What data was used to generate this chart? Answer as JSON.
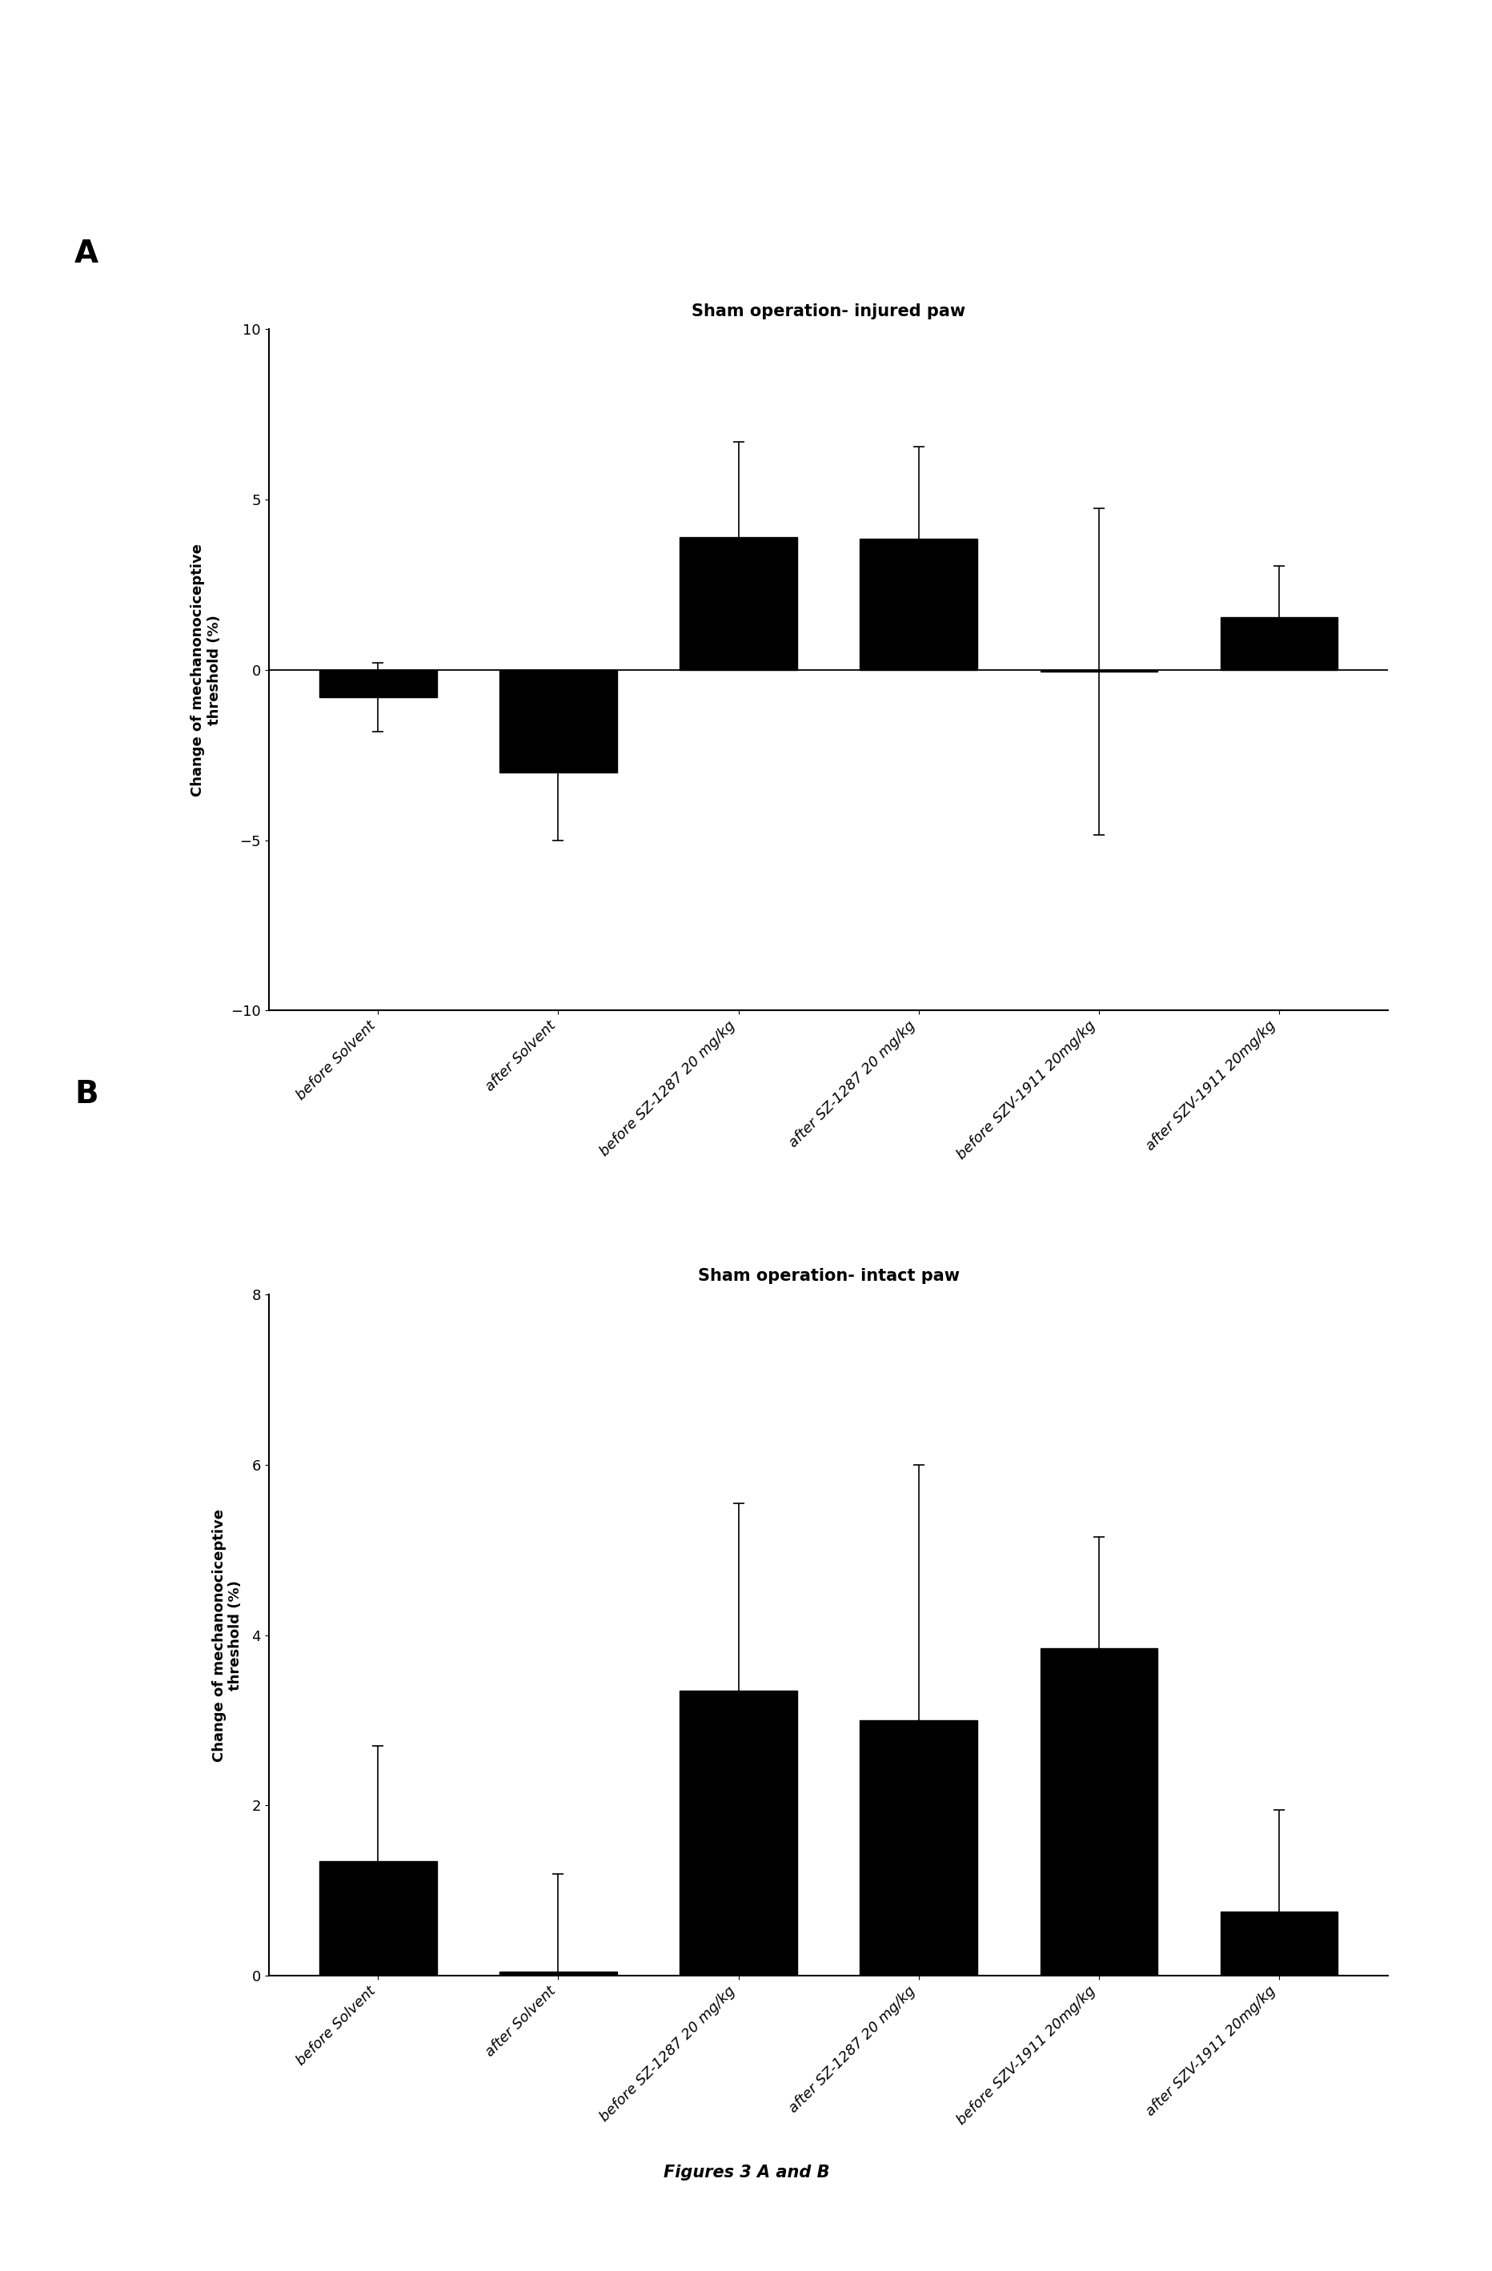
{
  "panel_A": {
    "title": "Sham operation- injured paw",
    "label": "A",
    "values": [
      -0.8,
      -3.0,
      3.9,
      3.85,
      -0.05,
      1.55
    ],
    "errors_plus": [
      1.0,
      2.0,
      2.8,
      2.7,
      4.8,
      1.5
    ],
    "errors_minus": [
      1.0,
      2.0,
      2.8,
      2.7,
      4.8,
      1.5
    ],
    "ylim": [
      -10,
      10
    ],
    "yticks": [
      -10,
      -5,
      0,
      5,
      10
    ],
    "ylabel": "Change of mechanonociceptive\nthreshold (%)"
  },
  "panel_B": {
    "title": "Sham operation- intact paw",
    "label": "B",
    "values": [
      1.35,
      0.05,
      3.35,
      3.0,
      3.85,
      0.75
    ],
    "errors_plus": [
      1.35,
      1.15,
      2.2,
      3.0,
      1.3,
      1.2
    ],
    "errors_minus": [
      1.35,
      1.15,
      2.2,
      3.0,
      1.3,
      1.2
    ],
    "ylim": [
      0,
      8
    ],
    "yticks": [
      0,
      2,
      4,
      6,
      8
    ],
    "ylabel": "Change of mechanonociceptive\nthreshold (%)"
  },
  "categories": [
    "before Solvent",
    "after Solvent",
    "before SZ-1287 20 mg/kg",
    "after SZ-1287 20 mg/kg",
    "before SZV-1911 20mg/kg",
    "after SZV-1911 20mg/kg"
  ],
  "bar_color": "#000000",
  "bar_width": 0.65,
  "figure_caption": "Figures 3 A and B",
  "background_color": "#ffffff"
}
